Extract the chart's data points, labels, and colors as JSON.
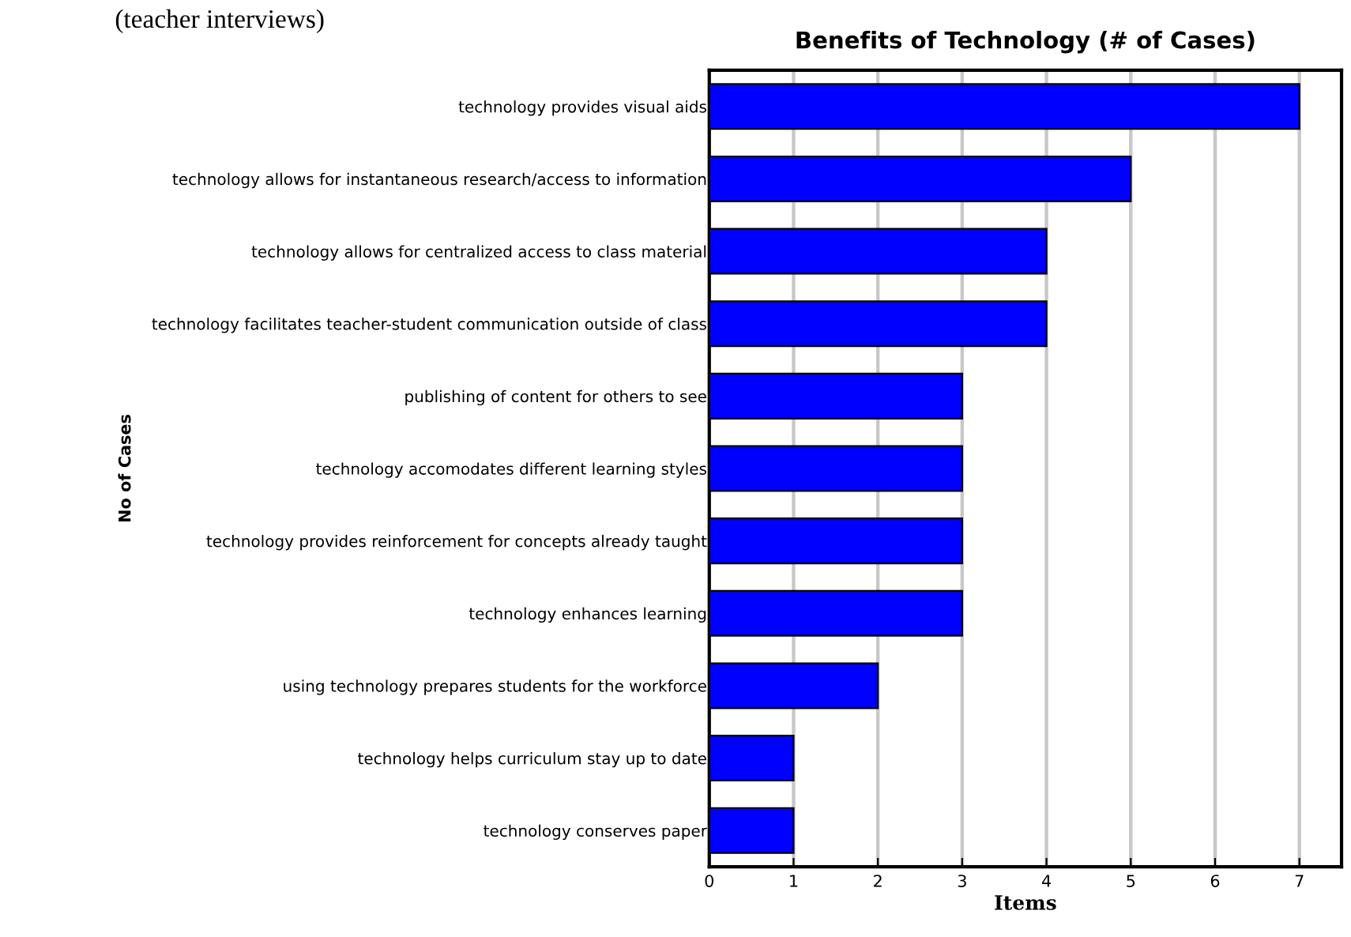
{
  "chart_data": {
    "type": "bar",
    "orientation": "horizontal",
    "title": "Benefits of Technology (# of Cases)",
    "xlabel": "Items",
    "ylabel": "No of Cases",
    "annotations": [
      "(teacher interviews)"
    ],
    "categories": [
      "technology provides visual aids",
      "technology allows for instantaneous research/access to information",
      "technology allows for centralized access to class material",
      "technology facilitates teacher-student communication outside of class",
      "publishing of content for others to see",
      "technology accomodates different learning styles",
      "technology provides reinforcement for concepts already taught",
      "technology enhances learning",
      "using technology prepares students for the workforce",
      "technology helps curriculum stay up to date",
      "technology conserves paper"
    ],
    "values": [
      7,
      5,
      4,
      4,
      3,
      3,
      3,
      3,
      2,
      1,
      1
    ],
    "color": "#0000ff",
    "xlim": [
      0,
      7.5
    ],
    "xticks": [
      0,
      1,
      2,
      3,
      4,
      5,
      6,
      7
    ],
    "grid": "x",
    "legend": false
  }
}
